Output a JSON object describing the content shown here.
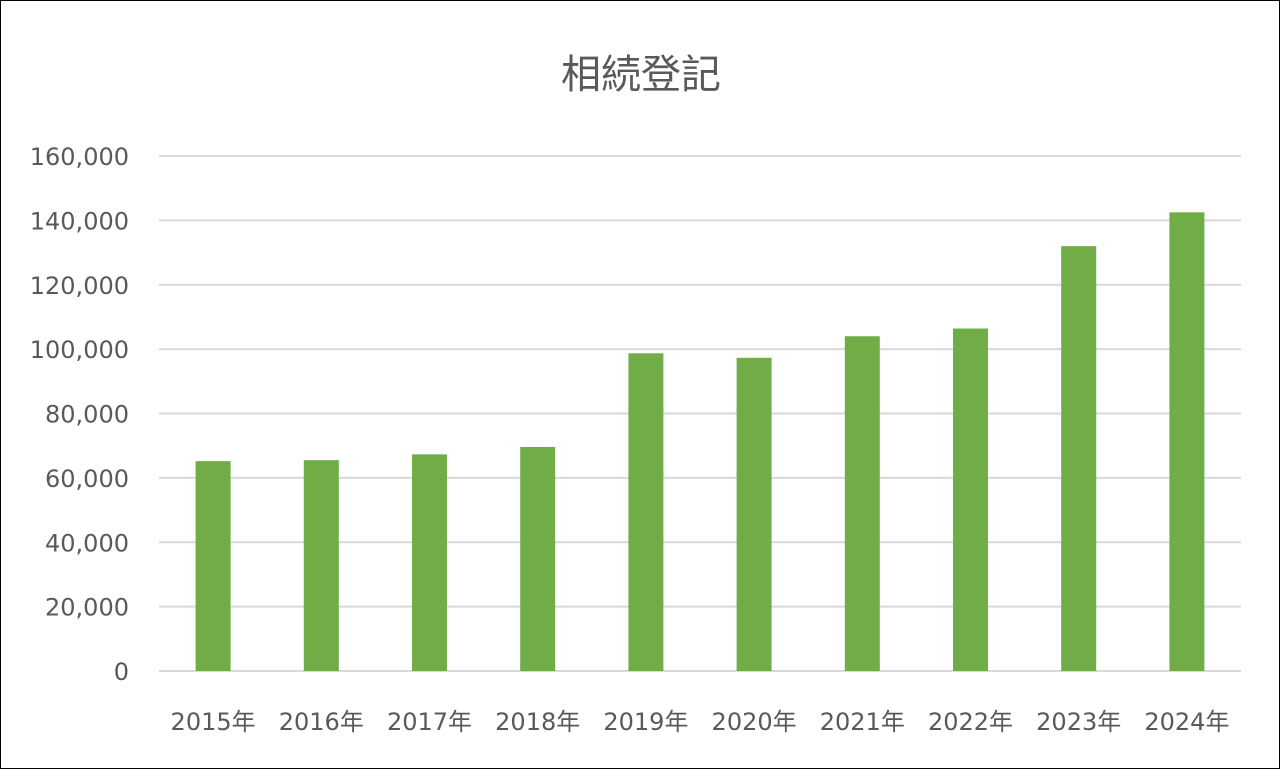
{
  "chart_data": {
    "type": "bar",
    "title": "相続登記",
    "xlabel": "",
    "ylabel": "",
    "categories": [
      "2015年",
      "2016年",
      "2017年",
      "2018年",
      "2019年",
      "2020年",
      "2021年",
      "2022年",
      "2023年",
      "2024年"
    ],
    "values": [
      65200,
      65500,
      67300,
      69600,
      98700,
      97300,
      104000,
      106400,
      132000,
      142500
    ],
    "ylim": [
      0,
      160000
    ],
    "yticks": [
      0,
      20000,
      40000,
      60000,
      80000,
      100000,
      120000,
      140000,
      160000
    ],
    "ytick_labels": [
      "0",
      "20,000",
      "40,000",
      "60,000",
      "80,000",
      "100,000",
      "120,000",
      "140,000",
      "160,000"
    ],
    "grid": true,
    "legend": "none",
    "colors": {
      "bar": "#70ad47",
      "grid": "#d9d9d9",
      "text": "#595959"
    }
  }
}
